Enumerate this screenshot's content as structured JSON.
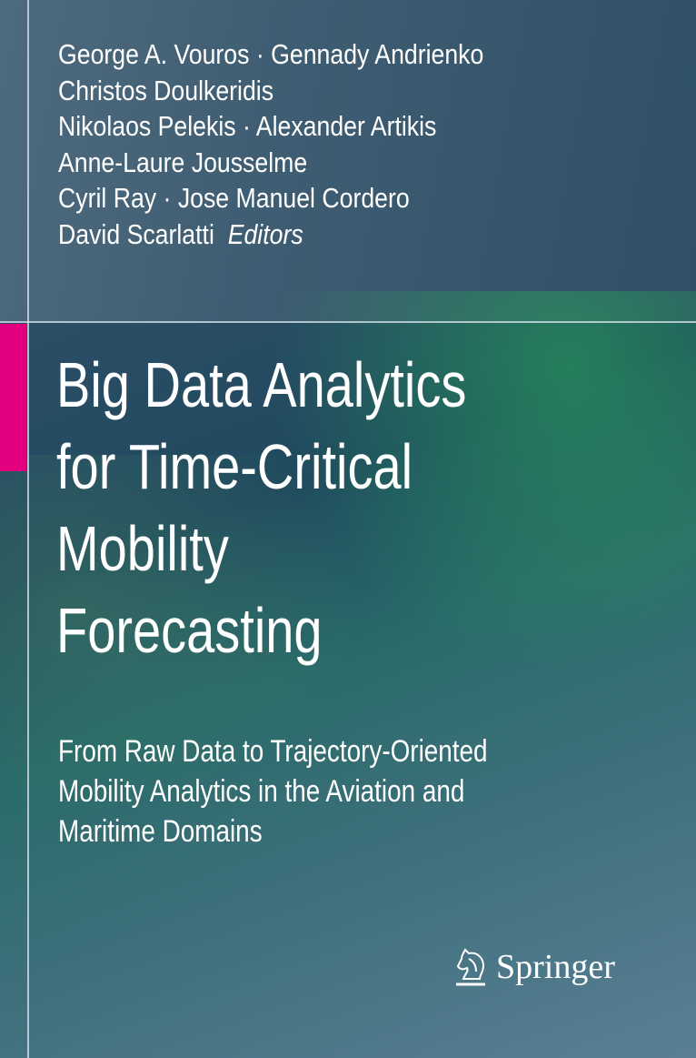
{
  "authors": {
    "lines": [
      "George A. Vouros · Gennady Andrienko",
      "Christos Doulkeridis",
      "Nikolaos Pelekis · Alexander Artikis",
      "Anne-Laure Jousselme",
      "Cyril Ray · Jose Manuel Cordero",
      "David Scarlatti"
    ],
    "role": "Editors"
  },
  "title": {
    "lines": [
      "Big Data Analytics",
      "for Time-Critical",
      "Mobility",
      "Forecasting"
    ]
  },
  "subtitle": {
    "lines": [
      "From Raw Data to Trajectory-Oriented",
      "Mobility Analytics in the Aviation and",
      "Maritime Domains"
    ]
  },
  "publisher": {
    "name": "Springer",
    "icon": "knight-horse-logo"
  },
  "colors": {
    "accent": "#e3007e",
    "background": "#2c4d66",
    "text": "#ffffff"
  }
}
